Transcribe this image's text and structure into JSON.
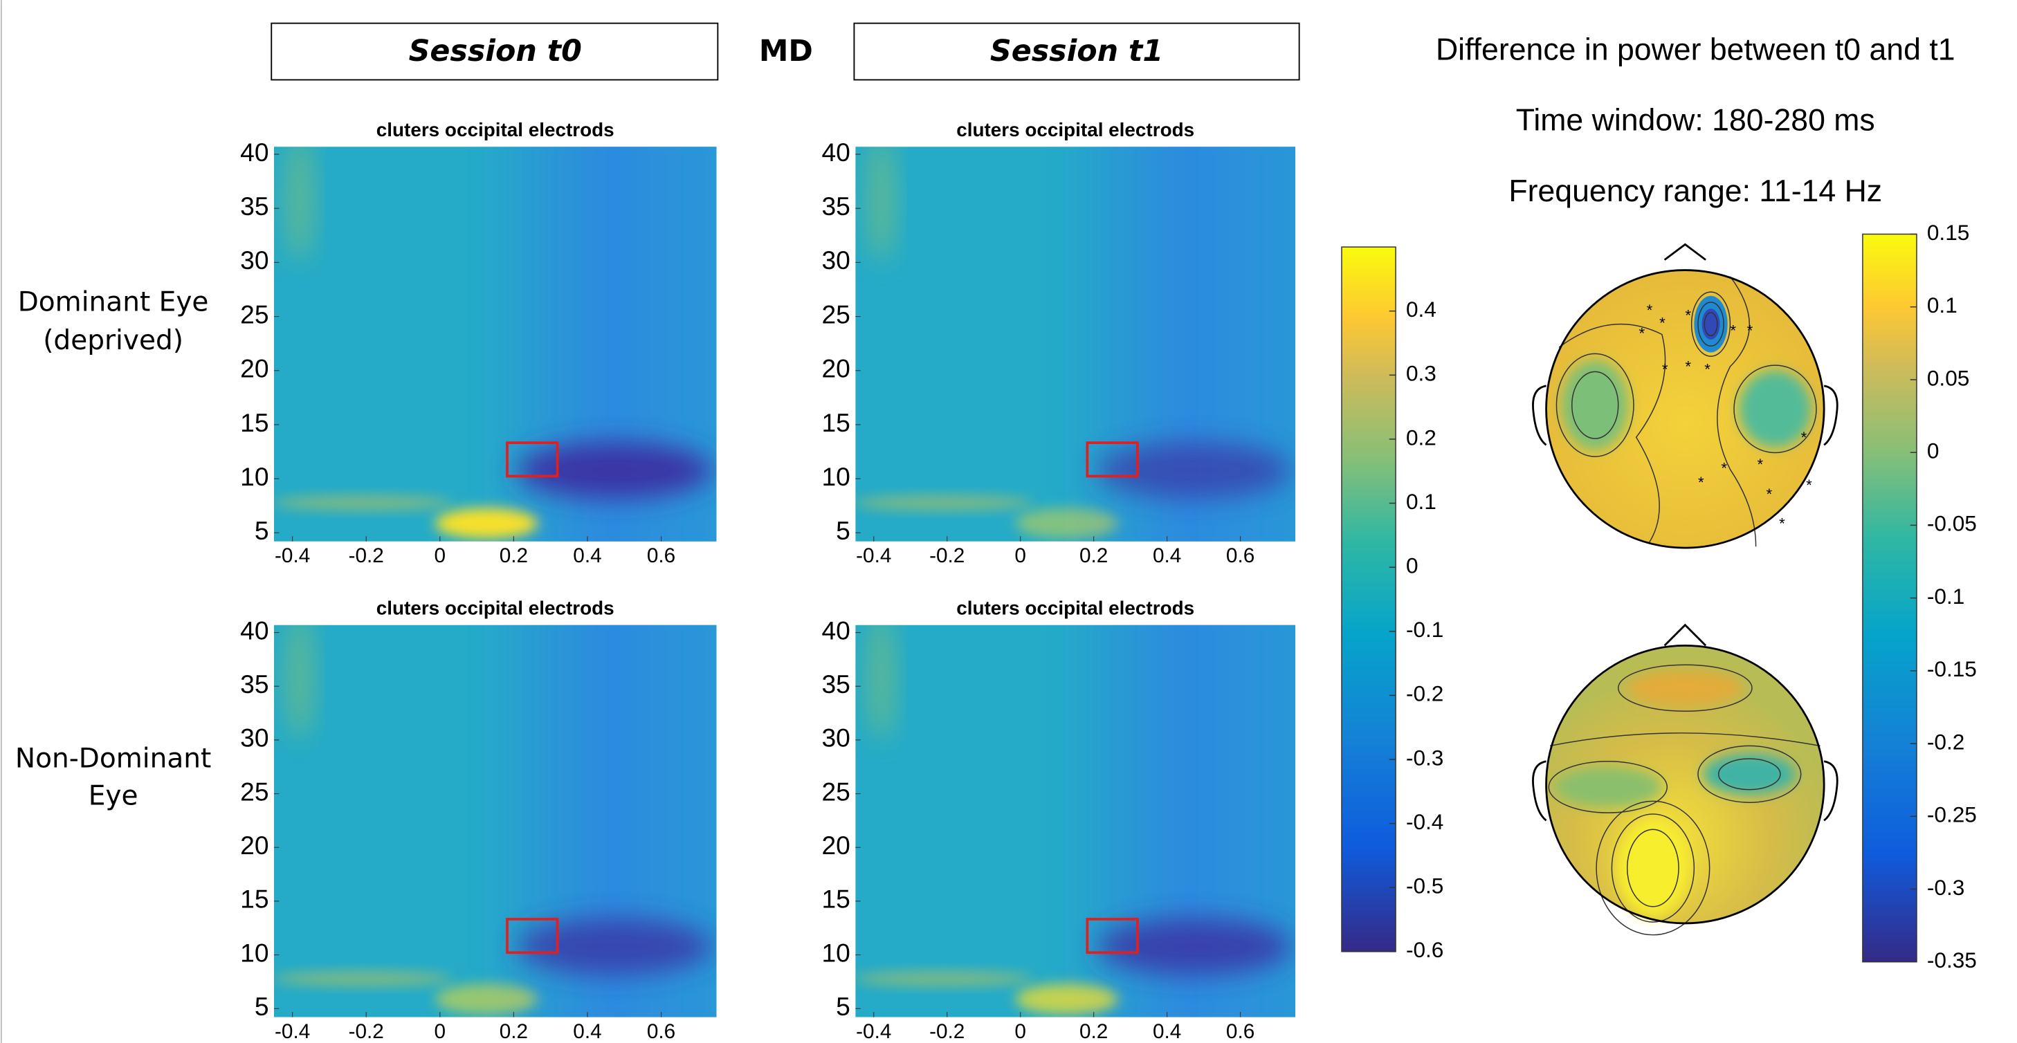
{
  "header": {
    "left": "Session t0",
    "middle": "MD",
    "right": "Session t1"
  },
  "info": [
    "Difference in power between t0 and t1",
    "Time window: 180-280 ms",
    "Frequency range: 11-14 Hz"
  ],
  "rows": [
    [
      "Dominant Eye",
      "(deprived)"
    ],
    [
      "Non-Dominant",
      "Eye"
    ]
  ],
  "panels": [
    {
      "title": "cluters occipital electrods"
    },
    {
      "title": "cluters occipital electrods"
    },
    {
      "title": "cluters occipital electrods"
    },
    {
      "title": "cluters occipital electrods"
    }
  ],
  "heatmap_axes": {
    "xlim": [
      -0.45,
      0.75
    ],
    "xticks": [
      -0.4,
      -0.2,
      0,
      0.2,
      0.4,
      0.6
    ],
    "ylim": [
      4.2,
      40.7
    ],
    "yticks": [
      5,
      10,
      15,
      20,
      25,
      30,
      35,
      40
    ]
  },
  "colorbar_tf": {
    "lim": [
      -0.6,
      0.5
    ],
    "ticks": [
      -0.6,
      -0.5,
      -0.4,
      -0.3,
      -0.2,
      -0.1,
      0,
      0.1,
      0.2,
      0.3,
      0.4
    ]
  },
  "colorbar_topo": {
    "lim": [
      -0.35,
      0.15
    ],
    "ticks": [
      -0.35,
      -0.3,
      -0.25,
      -0.2,
      -0.15,
      -0.1,
      -0.05,
      0,
      0.05,
      0.1,
      0.15
    ]
  }
}
